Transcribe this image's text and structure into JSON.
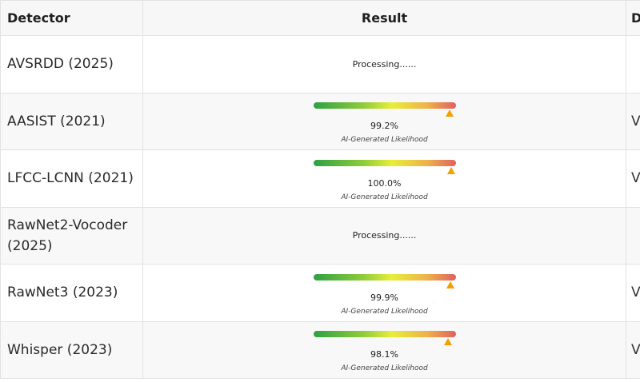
{
  "table": {
    "headers": {
      "detector": "Detector",
      "result": "Result",
      "extra": "D"
    },
    "rows": [
      {
        "detector": "AVSRDD (2025)",
        "status": "Processing......",
        "extra": ""
      },
      {
        "detector": "AASIST (2021)",
        "percent": "99.2%",
        "likelihood": 0.992,
        "caption": "AI-Generated Likelihood",
        "extra": "V"
      },
      {
        "detector": "LFCC-LCNN (2021)",
        "percent": "100.0%",
        "likelihood": 1.0,
        "caption": "AI-Generated Likelihood",
        "extra": "V"
      },
      {
        "detector": "RawNet2-Vocoder (2025)",
        "status": "Processing......",
        "extra": ""
      },
      {
        "detector": "RawNet3 (2023)",
        "percent": "99.9%",
        "likelihood": 0.999,
        "caption": "AI-Generated Likelihood",
        "extra": "V"
      },
      {
        "detector": "Whisper (2023)",
        "percent": "98.1%",
        "likelihood": 0.981,
        "caption": "AI-Generated Likelihood",
        "extra": "V"
      }
    ]
  },
  "colors": {
    "marker": "#f0a000",
    "gradient_start": "#2ea043",
    "gradient_end": "#e06060"
  },
  "icons": {
    "marker": "warning-triangle-icon"
  }
}
